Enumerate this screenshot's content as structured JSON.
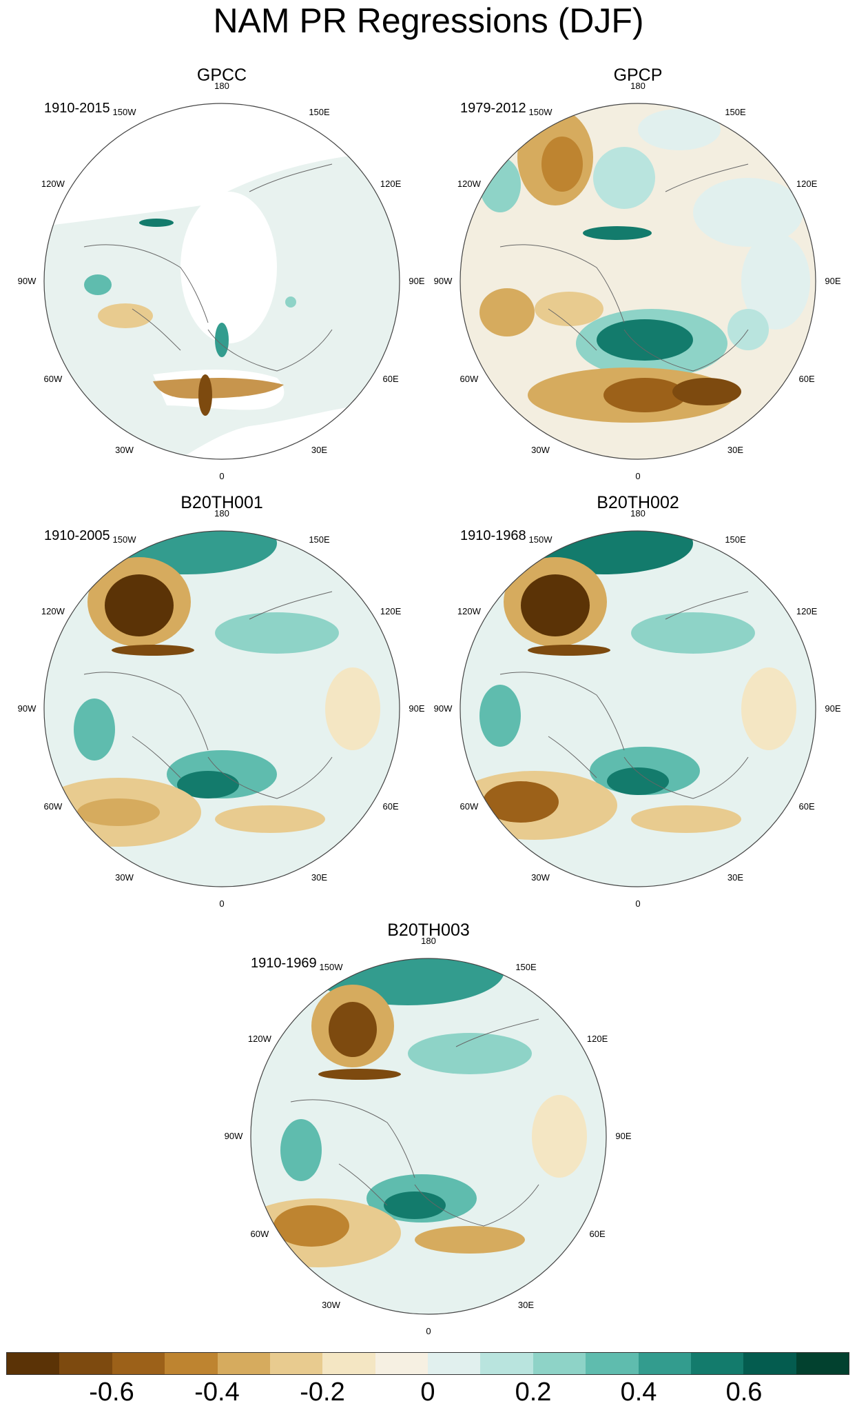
{
  "title": "NAM PR Regressions (DJF)",
  "lon_labels": [
    "180",
    "150E",
    "120E",
    "90E",
    "60E",
    "30E",
    "0",
    "30W",
    "60W",
    "90W",
    "120W",
    "150W"
  ],
  "panels": [
    {
      "id": "gpcc",
      "title": "GPCC",
      "period": "1910-2015"
    },
    {
      "id": "gpcp",
      "title": "GPCP",
      "period": "1979-2012"
    },
    {
      "id": "b20th001",
      "title": "B20TH001",
      "period": "1910-2005"
    },
    {
      "id": "b20th002",
      "title": "B20TH002",
      "period": "1910-1968"
    },
    {
      "id": "b20th003",
      "title": "B20TH003",
      "period": "1910-1969"
    }
  ],
  "colorbar": {
    "colors": [
      "#5b3306",
      "#7d4a0f",
      "#9c6119",
      "#be8430",
      "#d6ab5e",
      "#e8cb8f",
      "#f4e6c3",
      "#f6f0e2",
      "#e1f0ee",
      "#b9e4de",
      "#8ed3c7",
      "#5fbcae",
      "#339c8e",
      "#137b6c",
      "#045c4f",
      "#02412f"
    ],
    "tick_labels": [
      "-0.6",
      "-0.4",
      "-0.2",
      "0",
      "0.2",
      "0.4",
      "0.6"
    ]
  }
}
